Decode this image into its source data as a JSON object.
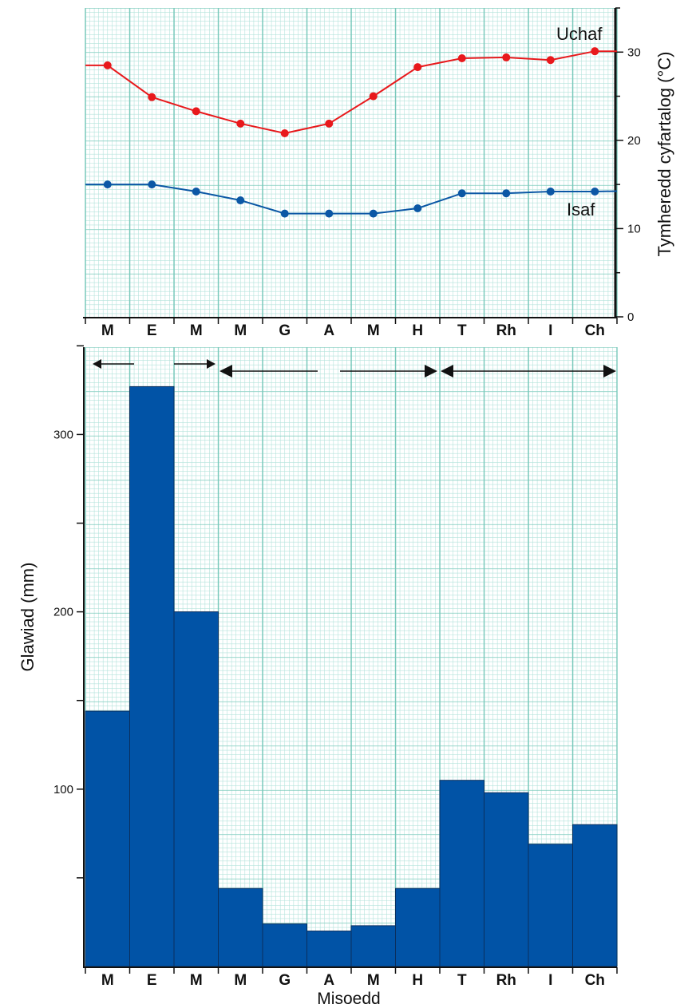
{
  "colors": {
    "grid_minor": "#b4e3dc",
    "grid_major": "#79c9bb",
    "max_line": "#e8191c",
    "min_line": "#0b57a5",
    "bar_fill": "#0153a6",
    "axis": "#111111",
    "grid_background": "#ffffff"
  },
  "chart_data": [
    {
      "type": "line",
      "ylabel": "Tymheredd cyfartalog (°C)",
      "ylim": [
        0,
        35
      ],
      "yticks": [
        0,
        10,
        20,
        30
      ],
      "y_axis_side": "right",
      "grid": true,
      "categories": [
        "M",
        "E",
        "M",
        "M",
        "G",
        "A",
        "M",
        "H",
        "T",
        "Rh",
        "I",
        "Ch"
      ],
      "series": [
        {
          "name": "Uchaf",
          "color": "#e8191c",
          "values": [
            28.5,
            24.9,
            23.3,
            21.9,
            20.8,
            21.9,
            25.0,
            28.3,
            29.3,
            29.4,
            29.1,
            30.1
          ]
        },
        {
          "name": "Isaf",
          "color": "#0b57a5",
          "values": [
            15.0,
            15.0,
            14.2,
            13.2,
            11.7,
            11.7,
            11.7,
            12.3,
            14.0,
            14.0,
            14.2,
            14.2
          ]
        }
      ]
    },
    {
      "type": "bar",
      "xlabel": "Misoedd",
      "ylabel": "Glawiad (mm)",
      "ylim": [
        0,
        350
      ],
      "yticks": [
        100,
        200,
        300
      ],
      "grid": true,
      "categories": [
        "M",
        "E",
        "M",
        "M",
        "G",
        "A",
        "M",
        "H",
        "T",
        "Rh",
        "I",
        "Ch"
      ],
      "values": [
        144,
        327,
        200,
        44,
        24,
        20,
        23,
        44,
        105,
        98,
        69,
        80
      ]
    }
  ]
}
